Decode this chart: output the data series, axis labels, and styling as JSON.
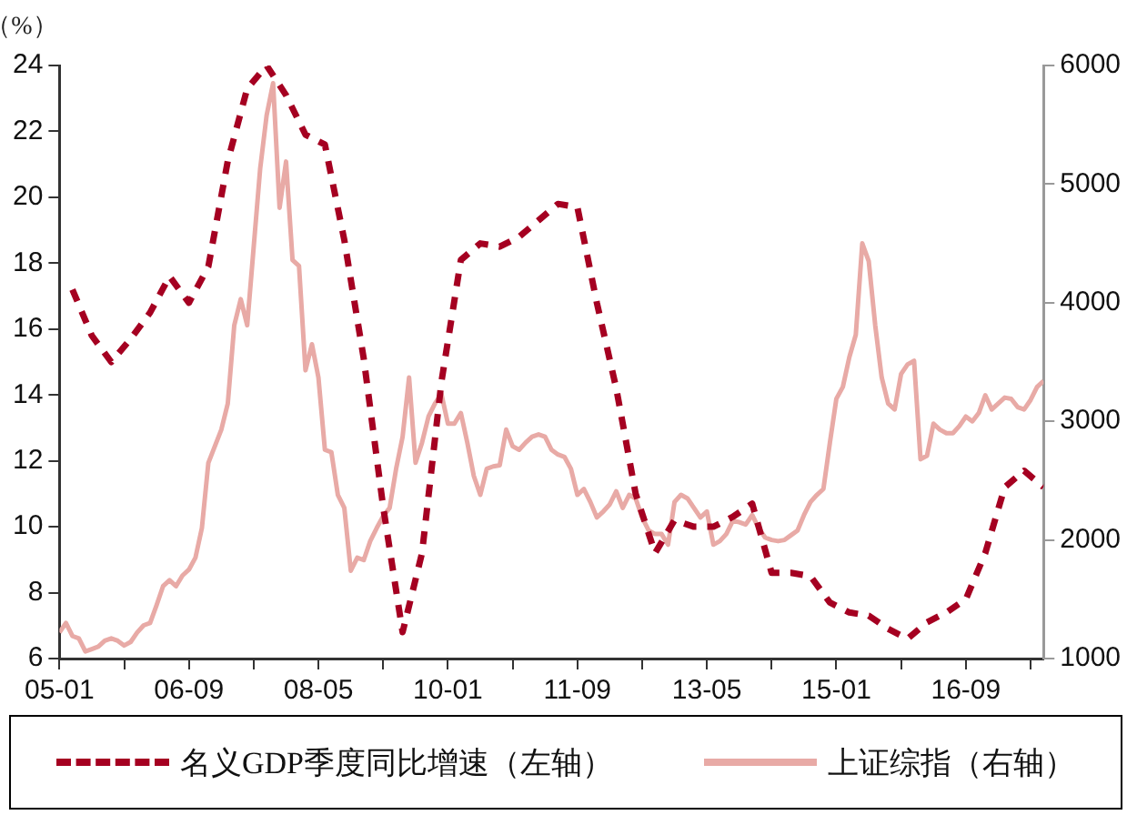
{
  "chart_data": {
    "type": "line",
    "ylabel": "（%）",
    "legend": "bottom",
    "grid": false,
    "marker": "none",
    "xlim": [
      "2005-01",
      "2017-09"
    ],
    "xticks": [
      {
        "value": "2005-01",
        "label": "05-01"
      },
      {
        "value": "2005-11",
        "label": null
      },
      {
        "value": "2006-09",
        "label": "06-09"
      },
      {
        "value": "2007-07",
        "label": null
      },
      {
        "value": "2008-05",
        "label": "08-05"
      },
      {
        "value": "2009-03",
        "label": null
      },
      {
        "value": "2010-01",
        "label": "10-01"
      },
      {
        "value": "2010-11",
        "label": null
      },
      {
        "value": "2011-09",
        "label": "11-09"
      },
      {
        "value": "2012-07",
        "label": null
      },
      {
        "value": "2013-05",
        "label": "13-05"
      },
      {
        "value": "2014-03",
        "label": null
      },
      {
        "value": "2015-01",
        "label": "15-01"
      },
      {
        "value": "2015-11",
        "label": null
      },
      {
        "value": "2016-09",
        "label": "16-09"
      },
      {
        "value": "2017-07",
        "label": null
      }
    ],
    "ylim": [
      6,
      24
    ],
    "yticks": [
      6,
      8,
      10,
      12,
      14,
      16,
      18,
      20,
      22,
      24
    ],
    "y2lim": [
      1000,
      6000
    ],
    "y2ticks": [
      1000,
      2000,
      3000,
      4000,
      5000,
      6000
    ],
    "series": [
      {
        "name": "名义GDP季度同比增速（左轴）",
        "color": "#a50021",
        "line_style": "dashed",
        "axis": "y",
        "x": [
          "2005-03",
          "2005-06",
          "2005-09",
          "2005-12",
          "2006-03",
          "2006-06",
          "2006-09",
          "2006-12",
          "2007-03",
          "2007-06",
          "2007-09",
          "2007-12",
          "2008-03",
          "2008-06",
          "2008-09",
          "2008-12",
          "2009-03",
          "2009-06",
          "2009-09",
          "2009-12",
          "2010-03",
          "2010-06",
          "2010-09",
          "2010-12",
          "2011-03",
          "2011-06",
          "2011-09",
          "2011-12",
          "2012-03",
          "2012-06",
          "2012-09",
          "2012-12",
          "2013-03",
          "2013-06",
          "2013-09",
          "2013-12",
          "2014-03",
          "2014-06",
          "2014-09",
          "2014-12",
          "2015-03",
          "2015-06",
          "2015-09",
          "2015-12",
          "2016-03",
          "2016-06",
          "2016-09",
          "2016-12",
          "2017-03",
          "2017-06",
          "2017-09"
        ],
        "values": [
          17.2,
          15.8,
          15.0,
          15.7,
          16.5,
          17.6,
          16.8,
          17.9,
          21.1,
          23.3,
          24.0,
          23.1,
          21.9,
          21.6,
          18.7,
          15.1,
          10.6,
          6.8,
          9.2,
          14.4,
          18.1,
          18.6,
          18.5,
          18.8,
          19.3,
          19.8,
          19.7,
          16.8,
          14.2,
          11.0,
          9.2,
          10.2,
          10.0,
          10.0,
          10.3,
          10.7,
          8.6,
          8.6,
          8.5,
          7.7,
          7.4,
          7.3,
          6.9,
          6.6,
          7.1,
          7.4,
          7.8,
          9.2,
          11.2,
          11.7,
          11.2
        ]
      },
      {
        "name": "上证综指（右轴）",
        "color": "#e8aaa6",
        "line_style": "solid",
        "axis": "y2",
        "x": [
          "2005-01",
          "2005-02",
          "2005-03",
          "2005-04",
          "2005-05",
          "2005-06",
          "2005-07",
          "2005-08",
          "2005-09",
          "2005-10",
          "2005-11",
          "2005-12",
          "2006-01",
          "2006-02",
          "2006-03",
          "2006-04",
          "2006-05",
          "2006-06",
          "2006-07",
          "2006-08",
          "2006-09",
          "2006-10",
          "2006-11",
          "2006-12",
          "2007-01",
          "2007-02",
          "2007-03",
          "2007-04",
          "2007-05",
          "2007-06",
          "2007-07",
          "2007-08",
          "2007-09",
          "2007-10",
          "2007-11",
          "2007-12",
          "2008-01",
          "2008-02",
          "2008-03",
          "2008-04",
          "2008-05",
          "2008-06",
          "2008-07",
          "2008-08",
          "2008-09",
          "2008-10",
          "2008-11",
          "2008-12",
          "2009-01",
          "2009-02",
          "2009-03",
          "2009-04",
          "2009-05",
          "2009-06",
          "2009-07",
          "2009-08",
          "2009-09",
          "2009-10",
          "2009-11",
          "2009-12",
          "2010-01",
          "2010-02",
          "2010-03",
          "2010-04",
          "2010-05",
          "2010-06",
          "2010-07",
          "2010-08",
          "2010-09",
          "2010-10",
          "2010-11",
          "2010-12",
          "2011-01",
          "2011-02",
          "2011-03",
          "2011-04",
          "2011-05",
          "2011-06",
          "2011-07",
          "2011-08",
          "2011-09",
          "2011-10",
          "2011-11",
          "2011-12",
          "2012-01",
          "2012-02",
          "2012-03",
          "2012-04",
          "2012-05",
          "2012-06",
          "2012-07",
          "2012-08",
          "2012-09",
          "2012-10",
          "2012-11",
          "2012-12",
          "2013-01",
          "2013-02",
          "2013-03",
          "2013-04",
          "2013-05",
          "2013-06",
          "2013-07",
          "2013-08",
          "2013-09",
          "2013-10",
          "2013-11",
          "2013-12",
          "2014-01",
          "2014-02",
          "2014-03",
          "2014-04",
          "2014-05",
          "2014-06",
          "2014-07",
          "2014-08",
          "2014-09",
          "2014-10",
          "2014-11",
          "2014-12",
          "2015-01",
          "2015-02",
          "2015-03",
          "2015-04",
          "2015-05",
          "2015-06",
          "2015-07",
          "2015-08",
          "2015-09",
          "2015-10",
          "2015-11",
          "2015-12",
          "2016-01",
          "2016-02",
          "2016-03",
          "2016-04",
          "2016-05",
          "2016-06",
          "2016-07",
          "2016-08",
          "2016-09",
          "2016-10",
          "2016-11",
          "2016-12",
          "2017-01",
          "2017-02",
          "2017-03",
          "2017-04",
          "2017-05",
          "2017-06",
          "2017-07",
          "2017-08",
          "2017-09"
        ],
        "values": [
          1220,
          1300,
          1190,
          1170,
          1060,
          1080,
          1100,
          1150,
          1170,
          1150,
          1110,
          1140,
          1220,
          1280,
          1300,
          1450,
          1610,
          1660,
          1610,
          1700,
          1750,
          1850,
          2100,
          2650,
          2790,
          2930,
          3150,
          3810,
          4030,
          3810,
          4470,
          5130,
          5580,
          5850,
          4800,
          5190,
          4360,
          4310,
          3430,
          3650,
          3370,
          2760,
          2740,
          2380,
          2270,
          1740,
          1850,
          1830,
          1990,
          2100,
          2200,
          2270,
          2600,
          2870,
          3370,
          2650,
          2820,
          3040,
          3150,
          3230,
          2980,
          2980,
          3070,
          2820,
          2540,
          2380,
          2600,
          2620,
          2630,
          2930,
          2790,
          2760,
          2820,
          2870,
          2890,
          2870,
          2760,
          2720,
          2700,
          2600,
          2380,
          2430,
          2320,
          2190,
          2240,
          2300,
          2410,
          2270,
          2380,
          2350,
          2190,
          2080,
          2050,
          2050,
          1960,
          2320,
          2380,
          2350,
          2270,
          2190,
          2240,
          1960,
          1990,
          2050,
          2160,
          2150,
          2130,
          2210,
          2100,
          2020,
          2000,
          1990,
          2000,
          2040,
          2080,
          2210,
          2320,
          2380,
          2430,
          2820,
          3190,
          3290,
          3540,
          3730,
          4500,
          4350,
          3810,
          3370,
          3150,
          3100,
          3400,
          3480,
          3510,
          2680,
          2710,
          2980,
          2930,
          2900,
          2900,
          2960,
          3040,
          3000,
          3070,
          3220,
          3100,
          3150,
          3200,
          3190,
          3120,
          3100,
          3180,
          3290,
          3340
        ]
      }
    ]
  }
}
